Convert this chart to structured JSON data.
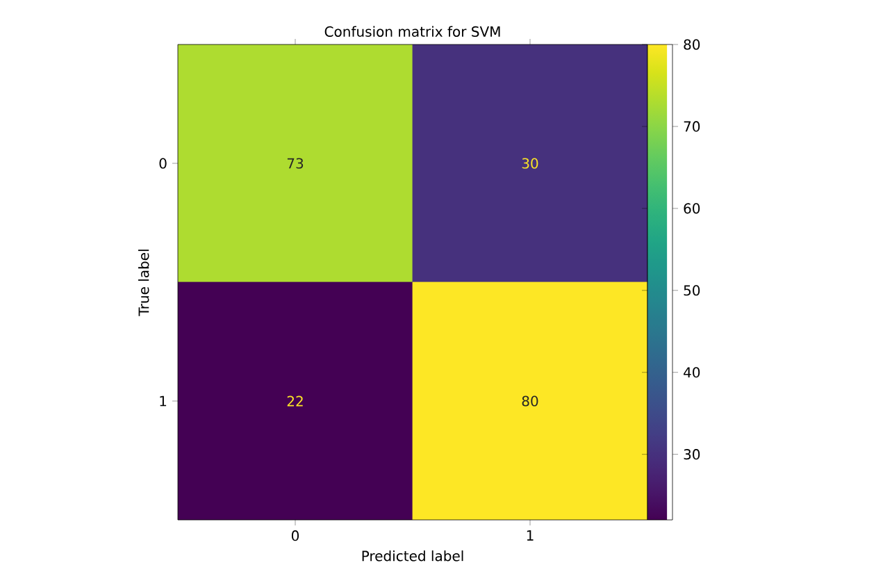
{
  "chart_data": {
    "type": "heatmap",
    "title": "Confusion matrix for SVM",
    "xlabel": "Predicted label",
    "ylabel": "True label",
    "categories": [
      "0",
      "1"
    ],
    "y_categories": [
      "0",
      "1"
    ],
    "cells": [
      [
        73,
        30
      ],
      [
        22,
        80
      ]
    ],
    "data_labels": true,
    "clim": [
      22,
      80
    ],
    "cticks": [
      30,
      40,
      50,
      60,
      70,
      80
    ]
  }
}
